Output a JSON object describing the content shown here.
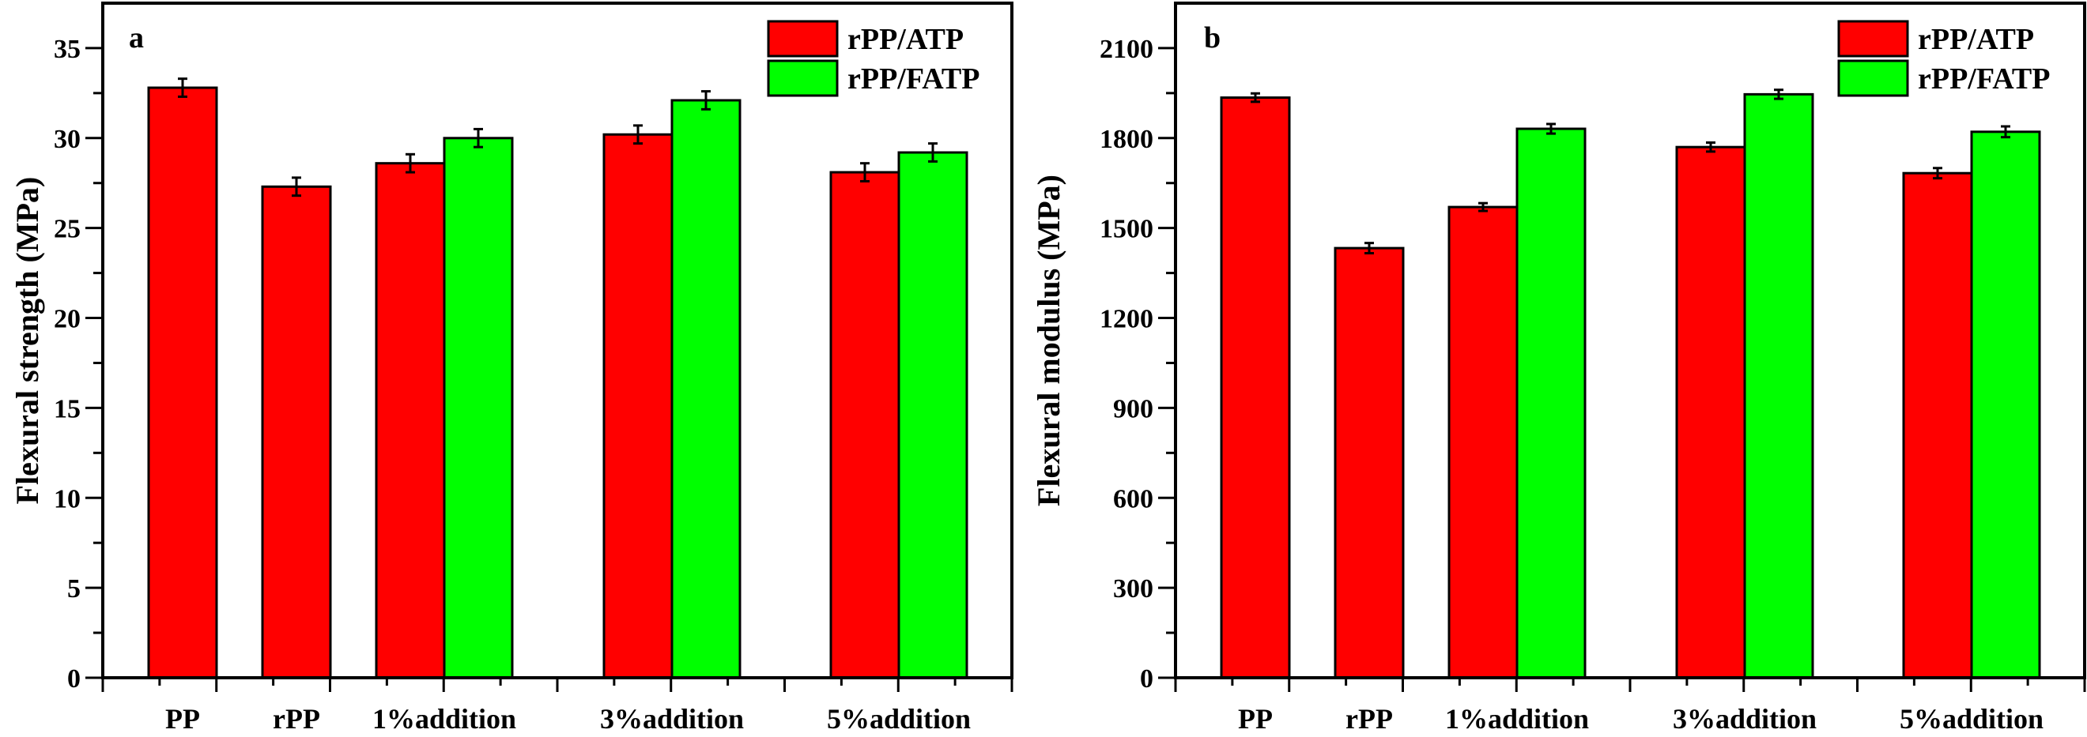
{
  "chart_data": [
    {
      "type": "bar",
      "panel_label": "a",
      "title": "",
      "xlabel": "",
      "ylabel": "Flexural strength (MPa)",
      "ylim": [
        0,
        37.5
      ],
      "yticks": [
        0,
        5,
        10,
        15,
        20,
        25,
        30,
        35
      ],
      "ytick_labels": [
        "0",
        "5",
        "10",
        "15",
        "20",
        "25",
        "30",
        "35"
      ],
      "grid": false,
      "legend_position": "top-right",
      "categories": [
        "PP",
        "rPP",
        "1%addition",
        "3%addition",
        "5%addition"
      ],
      "series": [
        {
          "name": "rPP/ATP",
          "color": "#ff0000",
          "values": [
            32.8,
            27.3,
            28.6,
            30.2,
            28.1
          ],
          "errors": [
            0.5,
            0.5,
            0.5,
            0.5,
            0.5
          ]
        },
        {
          "name": "rPP/FATP",
          "color": "#00ff00",
          "values": [
            null,
            null,
            30.0,
            32.1,
            29.2
          ],
          "errors": [
            null,
            null,
            0.5,
            0.5,
            0.5
          ]
        }
      ]
    },
    {
      "type": "bar",
      "panel_label": "b",
      "title": "",
      "xlabel": "",
      "ylabel": "Flexural modulus (MPa)",
      "ylim": [
        0,
        2250
      ],
      "yticks": [
        0,
        300,
        600,
        900,
        1200,
        1500,
        1800,
        2100
      ],
      "ytick_labels": [
        "0",
        "300",
        "600",
        "900",
        "1200",
        "1500",
        "1800",
        "2100"
      ],
      "grid": false,
      "legend_position": "top-right",
      "categories": [
        "PP",
        "rPP",
        "1%addition",
        "3%addition",
        "5%addition"
      ],
      "series": [
        {
          "name": "rPP/ATP",
          "color": "#ff0000",
          "values": [
            1935,
            1433,
            1570,
            1770,
            1683
          ],
          "errors": [
            14,
            17,
            13,
            15,
            17
          ]
        },
        {
          "name": "rPP/FATP",
          "color": "#00ff00",
          "values": [
            null,
            null,
            1831,
            1946,
            1821
          ],
          "errors": [
            null,
            null,
            16,
            15,
            18
          ]
        }
      ]
    }
  ]
}
